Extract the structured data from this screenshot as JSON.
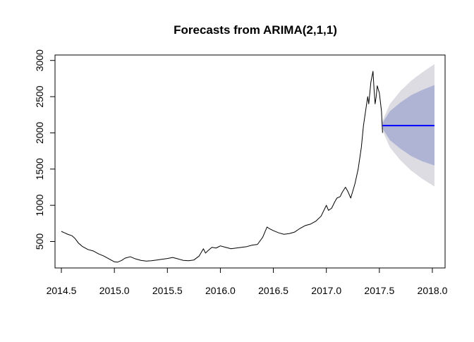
{
  "chart_data": {
    "type": "line",
    "title": "Forecasts from ARIMA(2,1,1)",
    "xlabel": "",
    "ylabel": "",
    "xlim": [
      2014.44,
      2018.12
    ],
    "ylim": [
      135,
      3075
    ],
    "x_ticks": [
      2014.5,
      2015.0,
      2015.5,
      2016.0,
      2016.5,
      2017.0,
      2017.5,
      2018.0
    ],
    "x_tick_labels": [
      "2014.5",
      "2015.0",
      "2015.5",
      "2016.0",
      "2016.5",
      "2017.0",
      "2017.5",
      "2018.0"
    ],
    "y_ticks": [
      500,
      1000,
      1500,
      2000,
      2500,
      3000
    ],
    "y_tick_labels": [
      "500",
      "1000",
      "1500",
      "2000",
      "2500",
      "3000"
    ],
    "grid": false,
    "legend": "none",
    "colors": {
      "history": "#000000",
      "forecast": "#0000ff",
      "band80": "#b0b4d4",
      "band95": "#dcdce2"
    },
    "series": [
      {
        "kind": "history",
        "x": [
          2014.5,
          2014.53,
          2014.56,
          2014.6,
          2014.63,
          2014.66,
          2014.7,
          2014.75,
          2014.8,
          2014.85,
          2014.9,
          2014.95,
          2015.0,
          2015.03,
          2015.07,
          2015.1,
          2015.15,
          2015.2,
          2015.25,
          2015.3,
          2015.35,
          2015.4,
          2015.45,
          2015.5,
          2015.55,
          2015.6,
          2015.65,
          2015.7,
          2015.75,
          2015.8,
          2015.84,
          2015.86,
          2015.88,
          2015.92,
          2015.96,
          2016.0,
          2016.05,
          2016.1,
          2016.15,
          2016.2,
          2016.25,
          2016.3,
          2016.35,
          2016.4,
          2016.44,
          2016.46,
          2016.5,
          2016.55,
          2016.6,
          2016.65,
          2016.7,
          2016.75,
          2016.8,
          2016.85,
          2016.9,
          2016.95,
          2017.0,
          2017.02,
          2017.05,
          2017.08,
          2017.1,
          2017.13,
          2017.15,
          2017.18,
          2017.2,
          2017.23,
          2017.25,
          2017.27,
          2017.3,
          2017.33,
          2017.35,
          2017.37,
          2017.39,
          2017.4,
          2017.42,
          2017.44,
          2017.45,
          2017.46,
          2017.47,
          2017.48,
          2017.5,
          2017.52,
          2017.53
        ],
        "y": [
          640,
          620,
          600,
          580,
          540,
          480,
          430,
          390,
          370,
          330,
          300,
          260,
          220,
          215,
          240,
          270,
          290,
          260,
          240,
          230,
          235,
          245,
          255,
          265,
          280,
          260,
          240,
          235,
          245,
          300,
          400,
          340,
          370,
          420,
          410,
          440,
          420,
          400,
          410,
          420,
          430,
          450,
          460,
          560,
          700,
          680,
          650,
          620,
          600,
          610,
          630,
          680,
          720,
          740,
          780,
          850,
          1000,
          930,
          960,
          1050,
          1100,
          1120,
          1180,
          1250,
          1200,
          1100,
          1200,
          1300,
          1500,
          1800,
          2100,
          2300,
          2500,
          2400,
          2700,
          2850,
          2600,
          2400,
          2500,
          2650,
          2550,
          2300,
          2000
        ]
      },
      {
        "kind": "forecast",
        "x": [
          2017.53,
          2018.02
        ],
        "y": [
          2100,
          2100
        ]
      }
    ],
    "band_95": {
      "x": [
        2017.53,
        2017.6,
        2017.7,
        2017.8,
        2017.9,
        2018.02
      ],
      "lower": [
        2030,
        1800,
        1620,
        1480,
        1370,
        1260
      ],
      "upper": [
        2170,
        2400,
        2580,
        2720,
        2830,
        2950
      ]
    },
    "band_80": {
      "x": [
        2017.53,
        2017.6,
        2017.7,
        2017.8,
        2017.9,
        2018.02
      ],
      "lower": [
        2060,
        1900,
        1780,
        1680,
        1610,
        1550
      ],
      "upper": [
        2140,
        2300,
        2420,
        2520,
        2590,
        2660
      ]
    }
  }
}
